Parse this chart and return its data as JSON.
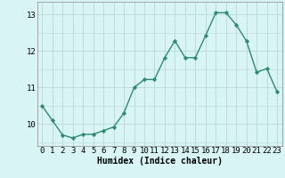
{
  "x": [
    0,
    1,
    2,
    3,
    4,
    5,
    6,
    7,
    8,
    9,
    10,
    11,
    12,
    13,
    14,
    15,
    16,
    17,
    18,
    19,
    20,
    21,
    22,
    23
  ],
  "y": [
    10.5,
    10.1,
    9.7,
    9.62,
    9.72,
    9.72,
    9.82,
    9.92,
    10.3,
    11.0,
    11.22,
    11.22,
    11.82,
    12.28,
    11.82,
    11.82,
    12.42,
    13.05,
    13.05,
    12.72,
    12.28,
    11.42,
    11.52,
    10.88
  ],
  "line_color": "#2e8b70",
  "marker": "D",
  "marker_size": 2.2,
  "bg_color": "#d8f4f4",
  "grid_color": "#b8d8d8",
  "xlabel": "Humidex (Indice chaleur)",
  "ylim": [
    9.4,
    13.35
  ],
  "xlim": [
    -0.5,
    23.5
  ],
  "yticks": [
    10,
    11,
    12,
    13
  ],
  "xticks": [
    0,
    1,
    2,
    3,
    4,
    5,
    6,
    7,
    8,
    9,
    10,
    11,
    12,
    13,
    14,
    15,
    16,
    17,
    18,
    19,
    20,
    21,
    22,
    23
  ],
  "xlabel_fontsize": 7.0,
  "tick_fontsize": 6.5,
  "linewidth": 1.0
}
